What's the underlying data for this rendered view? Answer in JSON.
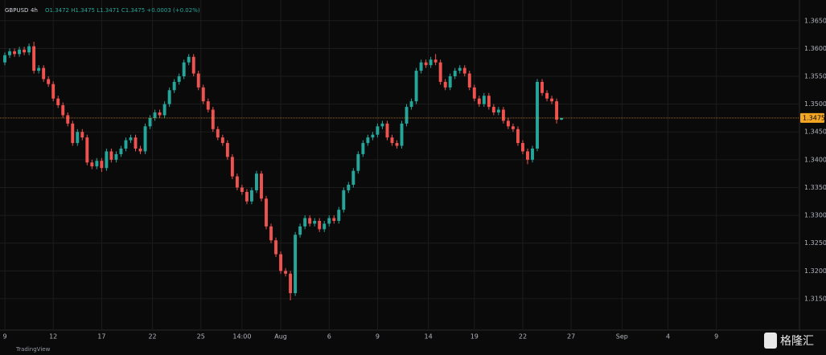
{
  "chart_data": {
    "type": "candlestick",
    "symbol": "GBPUSD",
    "interval": "4h",
    "legend_text": "O1.3472 H1.3475 L1.3471 C1.3475 +0.0003 (+0.02%)",
    "watermarks": [
      "TradingView",
      "格隆汇"
    ],
    "up_color": "#26a69a",
    "down_color": "#ef5350",
    "last_price_color": "#f5a623",
    "grid": true,
    "last_price": 1.3475,
    "xlim": [
      -1,
      164
    ],
    "xticks": [
      {
        "value": 0,
        "label": "9"
      },
      {
        "value": 10,
        "label": "12"
      },
      {
        "value": 20,
        "label": "17"
      },
      {
        "value": 30.5,
        "label": "22"
      },
      {
        "value": 40.5,
        "label": "25"
      },
      {
        "value": 49,
        "label": "14:00"
      },
      {
        "value": 57,
        "label": "Aug"
      },
      {
        "value": 67,
        "label": "6"
      },
      {
        "value": 77,
        "label": "9"
      },
      {
        "value": 87.5,
        "label": "14"
      },
      {
        "value": 97,
        "label": "19"
      },
      {
        "value": 107,
        "label": "22"
      },
      {
        "value": 117,
        "label": "27"
      },
      {
        "value": 127.5,
        "label": "Sep"
      },
      {
        "value": 137,
        "label": "4"
      },
      {
        "value": 147,
        "label": "9"
      }
    ],
    "ylim": [
      1.3095,
      1.368
    ],
    "yticks": [
      {
        "value": 1.315,
        "label": "1.3150"
      },
      {
        "value": 1.32,
        "label": "1.3200"
      },
      {
        "value": 1.325,
        "label": "1.3250"
      },
      {
        "value": 1.33,
        "label": "1.3300"
      },
      {
        "value": 1.335,
        "label": "1.3350"
      },
      {
        "value": 1.34,
        "label": "1.3400"
      },
      {
        "value": 1.345,
        "label": "1.3450"
      },
      {
        "value": 1.35,
        "label": "1.3500"
      },
      {
        "value": 1.355,
        "label": "1.3550"
      },
      {
        "value": 1.36,
        "label": "1.3600"
      },
      {
        "value": 1.365,
        "label": "1.3650"
      }
    ],
    "open": [
      1.3575,
      1.3588,
      1.3595,
      1.359,
      1.3598,
      1.3593,
      1.3604,
      1.356,
      1.3565,
      1.3545,
      1.3536,
      1.351,
      1.3498,
      1.348,
      1.3465,
      1.343,
      1.345,
      1.344,
      1.3395,
      1.3388,
      1.3398,
      1.3385,
      1.3415,
      1.34,
      1.341,
      1.342,
      1.3435,
      1.344,
      1.342,
      1.3415,
      1.346,
      1.3475,
      1.3485,
      1.348,
      1.35,
      1.3525,
      1.354,
      1.355,
      1.3575,
      1.3585,
      1.3555,
      1.353,
      1.3505,
      1.349,
      1.3455,
      1.344,
      1.343,
      1.3405,
      1.337,
      1.335,
      1.3342,
      1.3325,
      1.3345,
      1.3375,
      1.333,
      1.328,
      1.3255,
      1.323,
      1.32,
      1.3195,
      1.316,
      1.3265,
      1.328,
      1.3295,
      1.3285,
      1.329,
      1.3275,
      1.3285,
      1.3295,
      1.329,
      1.331,
      1.3345,
      1.3355,
      1.338,
      1.341,
      1.343,
      1.344,
      1.3445,
      1.346,
      1.3465,
      1.344,
      1.343,
      1.3425,
      1.3465,
      1.3495,
      1.3505,
      1.356,
      1.3575,
      1.357,
      1.358,
      1.3575,
      1.354,
      1.353,
      1.355,
      1.356,
      1.3565,
      1.3555,
      1.353,
      1.351,
      1.35,
      1.3515,
      1.3495,
      1.3485,
      1.349,
      1.347,
      1.346,
      1.3455,
      1.343,
      1.3415,
      1.34,
      1.342,
      1.354,
      1.352,
      1.351,
      1.3505,
      1.3472
    ],
    "high": [
      1.3593,
      1.36,
      1.36,
      1.3603,
      1.3603,
      1.3609,
      1.3612,
      1.357,
      1.357,
      1.355,
      1.3541,
      1.3515,
      1.3503,
      1.3485,
      1.347,
      1.3455,
      1.3455,
      1.3445,
      1.34,
      1.3403,
      1.3403,
      1.342,
      1.342,
      1.3415,
      1.3425,
      1.344,
      1.3445,
      1.3445,
      1.3425,
      1.3465,
      1.348,
      1.349,
      1.349,
      1.3505,
      1.353,
      1.3545,
      1.3555,
      1.358,
      1.359,
      1.359,
      1.356,
      1.3535,
      1.351,
      1.3495,
      1.346,
      1.3445,
      1.3435,
      1.341,
      1.3375,
      1.3355,
      1.3347,
      1.335,
      1.338,
      1.338,
      1.3335,
      1.3285,
      1.326,
      1.3235,
      1.3205,
      1.32,
      1.327,
      1.3285,
      1.33,
      1.33,
      1.3295,
      1.3295,
      1.329,
      1.33,
      1.33,
      1.3315,
      1.335,
      1.336,
      1.3385,
      1.3415,
      1.3435,
      1.3445,
      1.345,
      1.3465,
      1.347,
      1.347,
      1.3445,
      1.3435,
      1.347,
      1.35,
      1.351,
      1.3565,
      1.358,
      1.358,
      1.3585,
      1.359,
      1.358,
      1.3545,
      1.3555,
      1.3565,
      1.357,
      1.357,
      1.356,
      1.3535,
      1.3515,
      1.352,
      1.352,
      1.35,
      1.3495,
      1.3495,
      1.3475,
      1.3465,
      1.346,
      1.3435,
      1.342,
      1.3425,
      1.3545,
      1.3545,
      1.3525,
      1.3515,
      1.351,
      1.3475
    ],
    "low": [
      1.357,
      1.3583,
      1.3585,
      1.3585,
      1.3588,
      1.3588,
      1.3555,
      1.3555,
      1.354,
      1.3531,
      1.3505,
      1.3493,
      1.3475,
      1.346,
      1.3425,
      1.3425,
      1.3435,
      1.339,
      1.3383,
      1.3383,
      1.3378,
      1.338,
      1.3395,
      1.3395,
      1.3405,
      1.3415,
      1.343,
      1.3415,
      1.341,
      1.341,
      1.3455,
      1.347,
      1.3475,
      1.3475,
      1.3495,
      1.352,
      1.3535,
      1.3545,
      1.357,
      1.355,
      1.3525,
      1.35,
      1.3485,
      1.345,
      1.3435,
      1.3425,
      1.34,
      1.3365,
      1.3345,
      1.3337,
      1.332,
      1.332,
      1.334,
      1.3325,
      1.3275,
      1.325,
      1.3225,
      1.3195,
      1.319,
      1.3147,
      1.3155,
      1.326,
      1.3275,
      1.328,
      1.328,
      1.327,
      1.327,
      1.328,
      1.3285,
      1.3285,
      1.3305,
      1.334,
      1.335,
      1.3375,
      1.3405,
      1.3425,
      1.3435,
      1.344,
      1.3455,
      1.3435,
      1.3425,
      1.342,
      1.342,
      1.346,
      1.349,
      1.35,
      1.3555,
      1.3565,
      1.3565,
      1.357,
      1.3535,
      1.3525,
      1.3525,
      1.3545,
      1.3555,
      1.355,
      1.3525,
      1.3505,
      1.3495,
      1.3495,
      1.349,
      1.348,
      1.348,
      1.3465,
      1.3455,
      1.345,
      1.3425,
      1.341,
      1.3392,
      1.3395,
      1.3415,
      1.3515,
      1.3505,
      1.35,
      1.3465,
      1.3471
    ],
    "close": [
      1.3588,
      1.3595,
      1.359,
      1.3598,
      1.3593,
      1.3604,
      1.356,
      1.3565,
      1.3545,
      1.3536,
      1.351,
      1.3498,
      1.348,
      1.3465,
      1.343,
      1.345,
      1.344,
      1.3395,
      1.3388,
      1.3398,
      1.3385,
      1.3415,
      1.34,
      1.341,
      1.342,
      1.3435,
      1.344,
      1.342,
      1.3415,
      1.346,
      1.3475,
      1.3485,
      1.348,
      1.35,
      1.3525,
      1.354,
      1.355,
      1.3575,
      1.3585,
      1.3555,
      1.353,
      1.3505,
      1.349,
      1.3455,
      1.344,
      1.343,
      1.3405,
      1.337,
      1.335,
      1.3342,
      1.3325,
      1.3345,
      1.3375,
      1.333,
      1.328,
      1.3255,
      1.323,
      1.32,
      1.3195,
      1.316,
      1.3265,
      1.328,
      1.3295,
      1.3285,
      1.329,
      1.3275,
      1.3285,
      1.3295,
      1.329,
      1.331,
      1.3345,
      1.3355,
      1.338,
      1.341,
      1.343,
      1.344,
      1.3445,
      1.346,
      1.3465,
      1.344,
      1.343,
      1.3425,
      1.3465,
      1.3495,
      1.3505,
      1.356,
      1.3575,
      1.357,
      1.358,
      1.3575,
      1.354,
      1.353,
      1.355,
      1.356,
      1.3565,
      1.3555,
      1.353,
      1.351,
      1.35,
      1.3515,
      1.3495,
      1.3485,
      1.349,
      1.347,
      1.346,
      1.3455,
      1.343,
      1.3415,
      1.34,
      1.342,
      1.354,
      1.352,
      1.351,
      1.3505,
      1.3472,
      1.3475
    ]
  }
}
